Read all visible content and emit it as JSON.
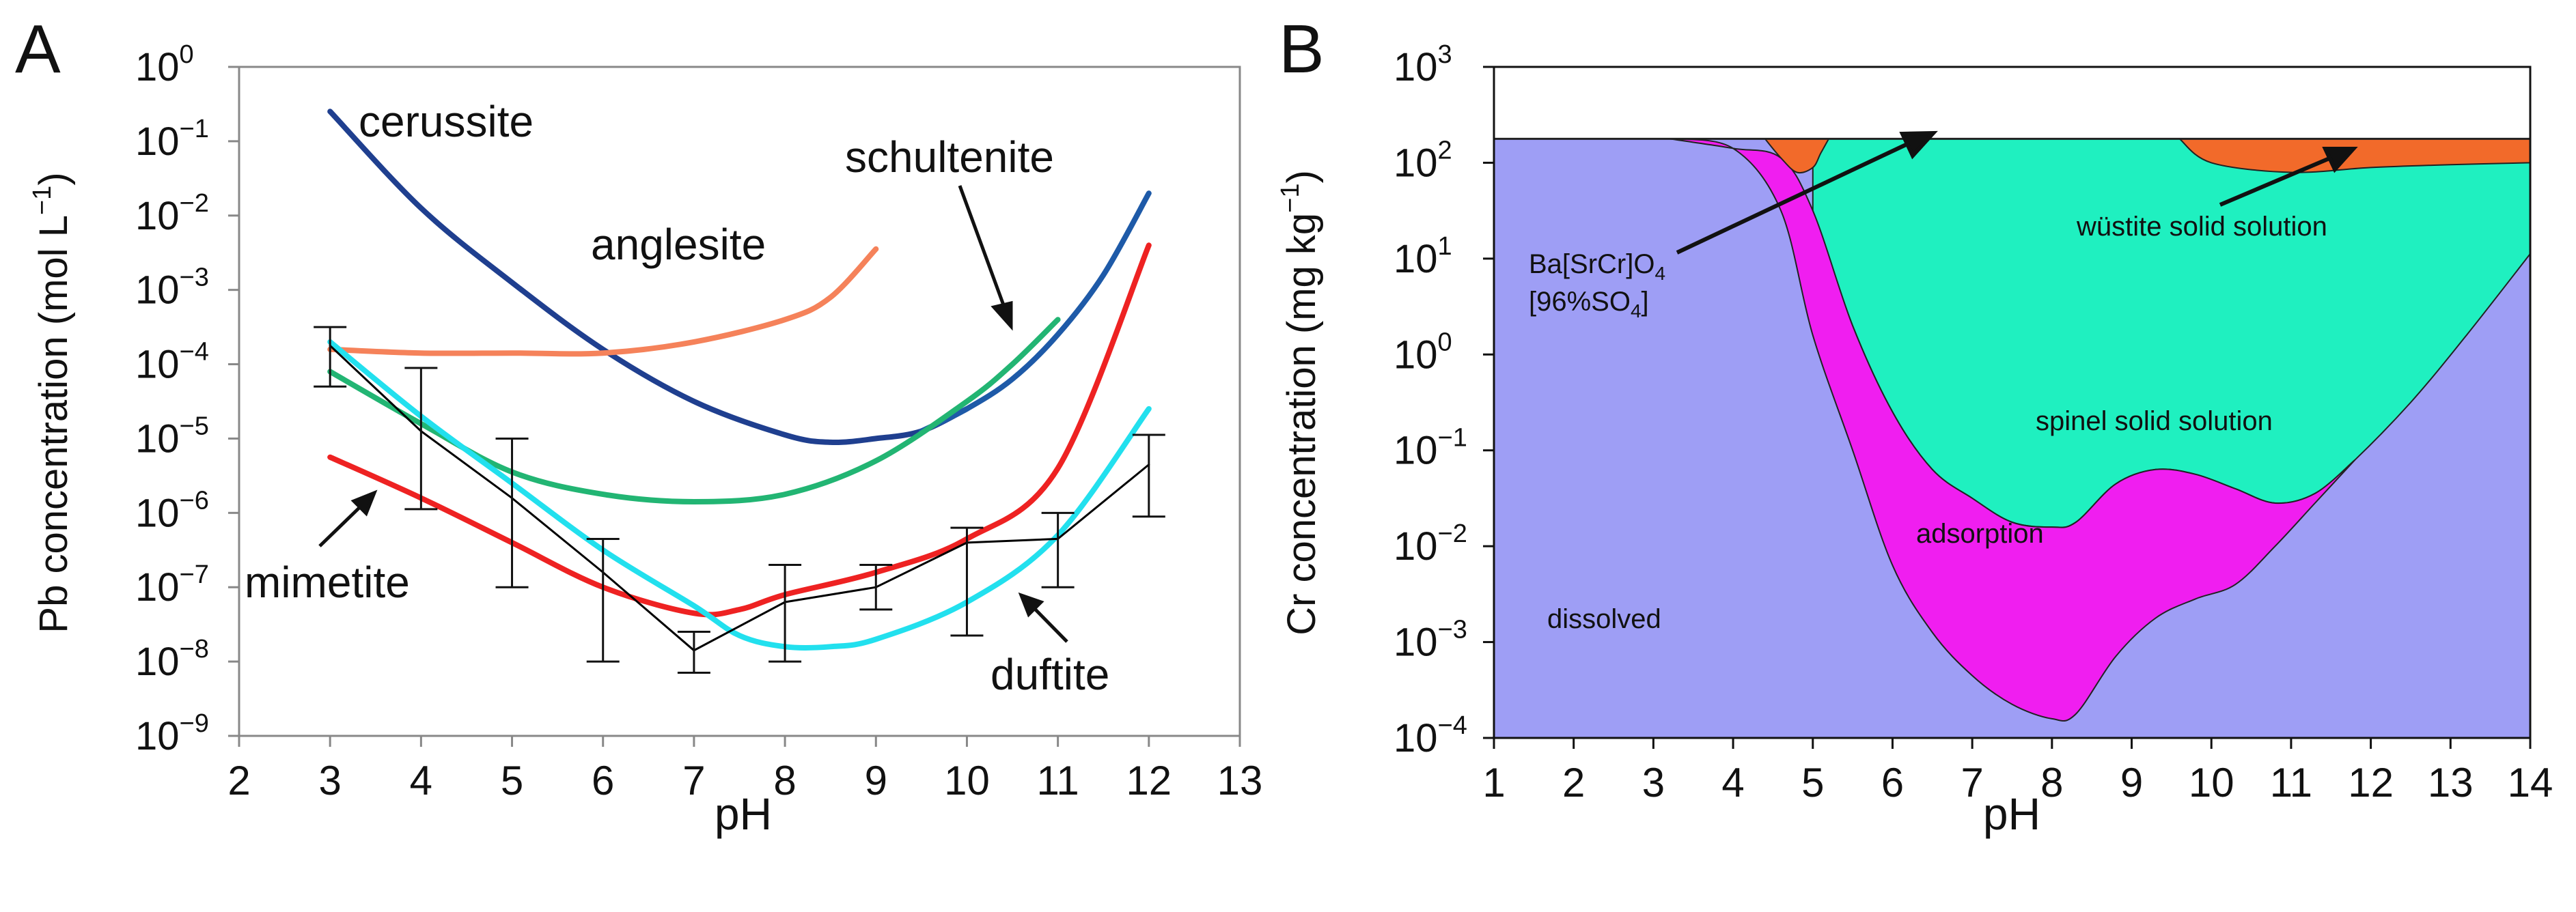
{
  "panels": {
    "a": {
      "letter": "A"
    },
    "b": {
      "letter": "B"
    }
  },
  "chart_data": [
    {
      "type": "line",
      "panel": "A",
      "xlabel": "pH",
      "ylabel": "Pb concentration (mol L",
      "ylabel_sup": "−1",
      "ylabel_end": ")",
      "xlim": [
        2,
        13
      ],
      "ylim_exp": [
        -9,
        0
      ],
      "y_scale": "log",
      "x_ticks": [
        "2",
        "3",
        "4",
        "5",
        "6",
        "7",
        "8",
        "9",
        "10",
        "11",
        "12",
        "13"
      ],
      "y_ticks_exp": [
        "0",
        "-1",
        "-2",
        "-3",
        "-4",
        "-5",
        "-6",
        "-7",
        "-8",
        "-9"
      ],
      "y_tick_base": "10",
      "colors": {
        "cerussite": "#1f3f8f",
        "anglesite": "#f5825a",
        "schultenite": "#1e5aa8",
        "green": "#22b573",
        "mimetite": "#ee2222",
        "duftite": "#22e0ee",
        "measured": "#000000"
      },
      "series": [
        {
          "key": "cerussite",
          "x": [
            3,
            4,
            5,
            6,
            7,
            8,
            8.5,
            9,
            9.5,
            10
          ],
          "log_y": [
            -0.6,
            -1.9,
            -2.9,
            -3.8,
            -4.5,
            -4.95,
            -5.05,
            -5.0,
            -4.9,
            -4.6
          ]
        },
        {
          "key": "anglesite",
          "x": [
            3,
            4,
            5,
            6,
            7,
            8,
            8.5,
            9
          ],
          "log_y": [
            -3.8,
            -3.85,
            -3.85,
            -3.85,
            -3.7,
            -3.4,
            -3.1,
            -2.45
          ]
        },
        {
          "key": "schultenite",
          "x": [
            9.5,
            10,
            10.5,
            11,
            11.5,
            12
          ],
          "log_y": [
            -4.9,
            -4.6,
            -4.2,
            -3.6,
            -2.8,
            -1.7
          ]
        },
        {
          "key": "green",
          "x": [
            3,
            4,
            5,
            6,
            7,
            8,
            9,
            10,
            10.5,
            11
          ],
          "log_y": [
            -4.1,
            -4.8,
            -5.45,
            -5.75,
            -5.85,
            -5.75,
            -5.3,
            -4.5,
            -4.0,
            -3.4
          ]
        },
        {
          "key": "mimetite",
          "x": [
            3,
            4,
            5,
            6,
            7,
            7.5,
            8,
            9,
            10,
            11,
            12
          ],
          "log_y": [
            -5.25,
            -5.8,
            -6.4,
            -7.0,
            -7.35,
            -7.3,
            -7.1,
            -6.8,
            -6.35,
            -5.4,
            -2.4
          ]
        },
        {
          "key": "duftite",
          "x": [
            3,
            4,
            5,
            6,
            7,
            7.5,
            8,
            8.5,
            9,
            10,
            11,
            12
          ],
          "log_y": [
            -3.7,
            -4.7,
            -5.6,
            -6.5,
            -7.25,
            -7.65,
            -7.8,
            -7.8,
            -7.7,
            -7.2,
            -6.3,
            -4.6
          ]
        },
        {
          "key": "measured",
          "x": [
            3,
            4,
            5,
            6,
            7,
            8,
            9,
            10,
            11,
            12
          ],
          "log_y": [
            -3.75,
            -4.9,
            -5.8,
            -6.8,
            -7.85,
            -7.2,
            -7.0,
            -6.4,
            -6.35,
            -5.35
          ]
        }
      ],
      "error_bars": {
        "x": [
          3,
          4,
          5,
          6,
          7,
          8,
          9,
          10,
          11,
          12
        ],
        "log_low": [
          -4.3,
          -5.95,
          -7.0,
          -8.0,
          -8.15,
          -8.0,
          -7.3,
          -7.65,
          -7.0,
          -6.05
        ],
        "log_high": [
          -3.5,
          -4.05,
          -5.0,
          -6.35,
          -7.6,
          -6.7,
          -6.7,
          -6.2,
          -6.0,
          -4.95
        ]
      },
      "labels": {
        "cerussite": "cerussite",
        "anglesite": "anglesite",
        "schultenite": "schultenite",
        "mimetite": "mimetite",
        "duftite": "duftite"
      }
    },
    {
      "type": "area",
      "panel": "B",
      "xlabel": "pH",
      "ylabel": "Cr concentration (mg kg",
      "ylabel_sup": "−1",
      "ylabel_end": ")",
      "xlim": [
        1,
        14
      ],
      "ylim_exp": [
        -4,
        3
      ],
      "y_scale": "log",
      "x_ticks": [
        "1",
        "2",
        "3",
        "4",
        "5",
        "6",
        "7",
        "8",
        "9",
        "10",
        "11",
        "12",
        "13",
        "14"
      ],
      "y_ticks_exp": [
        "3",
        "2",
        "1",
        "0",
        "-1",
        "-2",
        "-3",
        "-4"
      ],
      "y_tick_base": "10",
      "colors": {
        "dissolved": "#9e9ef5",
        "adsorption": "#f01ef0",
        "spinel": "#1ff0c0",
        "barium": "#f26a2a",
        "top": "#ffffff"
      },
      "regions": {
        "adsorption_upper": {
          "x": [
            3.2,
            4.0,
            4.6,
            5.0,
            5.5,
            6.0,
            6.5,
            7.0,
            7.5,
            8.0,
            8.3,
            8.8,
            9.3,
            9.8,
            10.3,
            10.8,
            11.3,
            11.8
          ],
          "log_y": [
            2.25,
            2.15,
            2.05,
            1.5,
            0.3,
            -0.6,
            -1.2,
            -1.5,
            -1.75,
            -1.8,
            -1.75,
            -1.35,
            -1.2,
            -1.25,
            -1.4,
            -1.55,
            -1.45,
            -1.1
          ]
        },
        "adsorption_lower": {
          "x": [
            3.2,
            4.0,
            4.6,
            5.0,
            5.5,
            6.0,
            6.5,
            7.0,
            7.5,
            8.0,
            8.3,
            8.8,
            9.3,
            9.8,
            10.3,
            10.8,
            11.3,
            11.8
          ],
          "log_y": [
            2.25,
            2.15,
            1.5,
            0.2,
            -1.0,
            -2.2,
            -2.9,
            -3.35,
            -3.65,
            -3.8,
            -3.75,
            -3.15,
            -2.75,
            -2.55,
            -2.4,
            -2.0,
            -1.55,
            -1.1
          ]
        },
        "spinel_lower": {
          "x": [
            5.0,
            5.5,
            6.0,
            6.5,
            7.0,
            7.5,
            8.0,
            8.3,
            8.8,
            9.3,
            9.8,
            10.3,
            10.8,
            11.3,
            11.8,
            12.5,
            13.2,
            14.0
          ],
          "log_y": [
            1.5,
            0.3,
            -0.6,
            -1.2,
            -1.5,
            -1.75,
            -1.8,
            -1.75,
            -1.35,
            -1.2,
            -1.25,
            -1.4,
            -1.55,
            -1.45,
            -1.1,
            -0.5,
            0.2,
            1.05
          ]
        },
        "barium_1": {
          "x": [
            4.4,
            4.6,
            4.8,
            5.0,
            5.1,
            5.2
          ],
          "log_y": [
            2.25,
            2.05,
            1.9,
            1.95,
            2.1,
            2.25
          ]
        },
        "barium_2": {
          "x": [
            9.6,
            10.0,
            11.0,
            12.0,
            13.0,
            14.0
          ],
          "log_y": [
            2.25,
            2.0,
            1.9,
            1.95,
            1.98,
            2.0
          ]
        }
      },
      "top_boundary_log": 2.25,
      "labels": {
        "dissolved": "dissolved",
        "adsorption": "adsorption",
        "spinel": "spinel solid solution",
        "wustite": "wüstite solid solution",
        "ba_line1": "Ba[SrCr]O",
        "ba_line1_sub": "4",
        "ba_line2": "[96%SO",
        "ba_line2_sub": "4",
        "ba_line2_end": "]"
      }
    }
  ]
}
